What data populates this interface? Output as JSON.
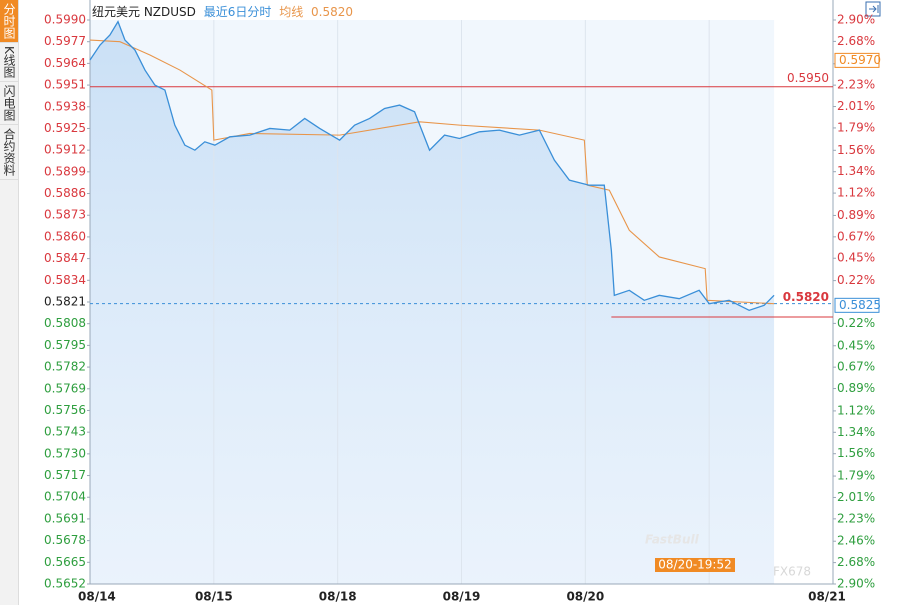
{
  "tabs": [
    "分时图",
    "K线图",
    "闪电图",
    "合约资料"
  ],
  "chart_data": {
    "type": "line",
    "title": "纽元美元 NZDUSD",
    "subtitle": "最近6日分时",
    "avg_legend": "均线",
    "avg_value": "0.5820",
    "xlim": [
      0,
      6
    ],
    "xticks": [
      {
        "value": 0,
        "label": "08/14"
      },
      {
        "value": 1,
        "label": "08/15"
      },
      {
        "value": 2,
        "label": "08/18"
      },
      {
        "value": 3,
        "label": "08/19"
      },
      {
        "value": 4,
        "label": "08/20"
      },
      {
        "value": 5,
        "label": null
      },
      {
        "value": 6,
        "label": "08/21"
      }
    ],
    "ylim": [
      0.5652,
      0.599
    ],
    "yticks": [
      {
        "value": 0.599,
        "label": "0.5990"
      },
      0.5977,
      0.5964,
      0.5951,
      0.5938,
      0.5925,
      0.5912,
      0.5899,
      0.5886,
      0.5873,
      {
        "value": 0.586,
        "label": "0.5860"
      },
      0.5847,
      0.5834,
      0.5821,
      0.5808,
      0.5795,
      0.5782,
      0.5769,
      0.5756,
      0.5743,
      {
        "value": 0.573,
        "label": "0.5730"
      },
      0.5717,
      0.5704,
      0.5691,
      0.5678,
      0.5665,
      0.5652
    ],
    "y2lim": [
      -2.9,
      2.9
    ],
    "y2ticks": [
      {
        "value": 2.9,
        "label": "2.90%"
      },
      {
        "value": 2.68,
        "label": "2.68%"
      },
      {
        "value": 2.45,
        "label": "2.45%"
      },
      {
        "value": 2.23,
        "label": "2.23%"
      },
      {
        "value": 2.01,
        "label": "2.01%"
      },
      {
        "value": 1.79,
        "label": "1.79%"
      },
      {
        "value": 1.56,
        "label": "1.56%"
      },
      {
        "value": 1.34,
        "label": "1.34%"
      },
      {
        "value": 1.12,
        "label": "1.12%"
      },
      {
        "value": 0.89,
        "label": "0.89%"
      },
      {
        "value": 0.67,
        "label": "0.67%"
      },
      {
        "value": 0.45,
        "label": "0.45%"
      },
      {
        "value": 0.22,
        "label": "0.22%"
      },
      {
        "value": -0.22,
        "label": "0.22%"
      },
      {
        "value": -0.45,
        "label": "0.45%"
      },
      {
        "value": -0.67,
        "label": "0.67%"
      },
      {
        "value": -0.89,
        "label": "0.89%"
      },
      {
        "value": -1.12,
        "label": "1.12%"
      },
      {
        "value": -1.34,
        "label": "1.34%"
      },
      {
        "value": -1.56,
        "label": "1.56%"
      },
      {
        "value": -1.79,
        "label": "1.79%"
      },
      {
        "value": -2.01,
        "label": "2.01%"
      },
      {
        "value": -2.23,
        "label": "2.23%"
      },
      {
        "value": -2.46,
        "label": "2.46%"
      },
      {
        "value": -2.68,
        "label": "2.68%"
      },
      {
        "value": -2.9,
        "label": "2.90%"
      }
    ],
    "up_color": "#d9383e",
    "down_color": "#2e9e3e",
    "series": [
      {
        "name": "纽元美元 NZDUSD",
        "color": "#3a8fd8",
        "x": [
          0,
          0.081,
          0.161,
          0.226,
          0.282,
          0.363,
          0.444,
          0.524,
          0.605,
          0.685,
          0.766,
          0.847,
          0.927,
          1.008,
          1.129,
          1.29,
          1.452,
          1.613,
          1.734,
          1.855,
          2.016,
          2.137,
          2.258,
          2.379,
          2.5,
          2.621,
          2.742,
          2.863,
          2.984,
          3.145,
          3.306,
          3.468,
          3.629,
          3.75,
          3.871,
          4.032,
          4.153,
          4.21,
          4.234,
          4.355,
          4.476,
          4.597,
          4.758,
          4.919,
          5.0,
          5.161,
          5.323,
          5.444,
          5.524
        ],
        "values": [
          0.5966,
          0.5975,
          0.5981,
          0.5989,
          0.5978,
          0.5972,
          0.596,
          0.5951,
          0.5948,
          0.5927,
          0.5915,
          0.5912,
          0.5917,
          0.5915,
          0.592,
          0.5921,
          0.5925,
          0.5924,
          0.5931,
          0.5925,
          0.5918,
          0.5927,
          0.5931,
          0.5937,
          0.5939,
          0.5935,
          0.5912,
          0.5921,
          0.5919,
          0.5923,
          0.5924,
          0.5921,
          0.5924,
          0.5906,
          0.5894,
          0.5891,
          0.5891,
          0.5852,
          0.5825,
          0.5828,
          0.5822,
          0.5825,
          0.5823,
          0.5828,
          0.582,
          0.5822,
          0.5816,
          0.5819,
          0.5825
        ]
      },
      {
        "name": "均线",
        "color": "#e8954a",
        "x": [
          0,
          0.242,
          0.484,
          0.726,
          0.984,
          1.0,
          1.29,
          2.016,
          2.661,
          2.984,
          3.629,
          3.992,
          4.016,
          4.194,
          4.355,
          4.597,
          4.968,
          4.984,
          5.524
        ],
        "values": [
          0.5978,
          0.5977,
          0.5969,
          0.596,
          0.5948,
          0.5918,
          0.5922,
          0.5921,
          0.5929,
          0.5927,
          0.5924,
          0.5918,
          0.5891,
          0.5888,
          0.5864,
          0.5848,
          0.5841,
          0.5822,
          0.582
        ]
      }
    ],
    "resistance": {
      "value": 0.595,
      "label": "0.5950",
      "color": "#d9383e"
    },
    "support": {
      "value": 0.5812,
      "x_start": 4.21,
      "color": "#d9383e"
    },
    "last_price": {
      "value": 0.582,
      "label": "0.5820",
      "color": "#d9383e"
    },
    "hover_avg": {
      "value": 0.597,
      "label": "0.5970",
      "color": "#f08a24"
    },
    "hover_price": {
      "value": 0.5825,
      "label": "0.5825",
      "color": "#3a8fd8"
    },
    "hover_time": "08/20-19:52",
    "watermarks": [
      "FastBull",
      "FX678"
    ]
  }
}
